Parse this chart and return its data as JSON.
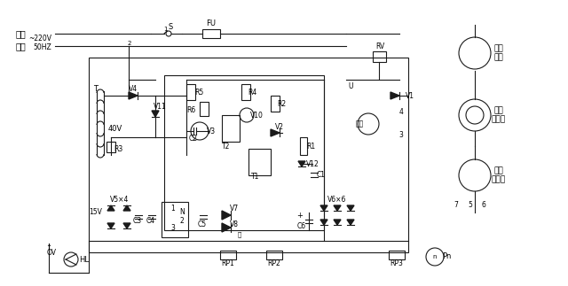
{
  "title": "",
  "bg_color": "#ffffff",
  "line_color": "#1a1a1a",
  "text_color": "#000000",
  "labels": {
    "xiang_xian": "相线",
    "zhong_xian": "中线",
    "voltage": "~220V",
    "freq": "50HZ",
    "S": "S",
    "FU": "FU",
    "T": "T",
    "V4": "V4",
    "V11": "V11",
    "R3": "R3",
    "R5": "R5",
    "R6": "R6",
    "V3": "V3",
    "C2": "C2",
    "T2": "T2",
    "R4": "R4",
    "V10": "V10",
    "V2": "V2",
    "T1": "T1",
    "R2": "R2",
    "V12": "V12",
    "C1": "C1",
    "R1": "R1",
    "V1": "V1",
    "RV": "RV",
    "U": "U",
    "shuchu": "输出",
    "num3": "3",
    "num4": "4",
    "V5x4": "V5×4",
    "15V": "15V",
    "C3": "C3",
    "C4": "C4",
    "num1": "1",
    "num2": "2",
    "num3b": "3",
    "N": "N",
    "C5": "C5",
    "V7": "V7",
    "V8": "V8",
    "V6x6": "V6×6",
    "C6": "C6",
    "RP1": "RP1",
    "RP2": "RP2",
    "RP3": "RP3",
    "Pn": "Pn",
    "HL": "HL",
    "OV": "OV",
    "tuo_dian_ji": "拖动\n电机",
    "dian_ci": "电磁\n离合器",
    "ce_su": "测速\n发电机",
    "num7": "7",
    "num5": "5",
    "num6": "6",
    "40V": "40V"
  }
}
